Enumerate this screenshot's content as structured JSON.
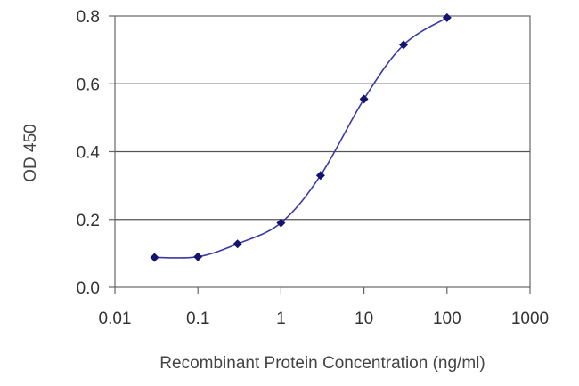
{
  "chart_data": {
    "type": "line",
    "title": "",
    "xlabel": "Recombinant Protein Concentration (ng/ml)",
    "ylabel": "OD 450",
    "xscale": "log",
    "xlim": [
      0.01,
      1000
    ],
    "ylim": [
      0,
      0.8
    ],
    "xticks": [
      "0.01",
      "0.1",
      "1",
      "10",
      "100",
      "1000"
    ],
    "yticks": [
      "0.0",
      "0.2",
      "0.4",
      "0.6",
      "0.8"
    ],
    "grid": "horizontal",
    "legend": "none",
    "series": [
      {
        "x": [
          0.03,
          0.1,
          0.3,
          1,
          3,
          10,
          30,
          100
        ],
        "y": [
          0.088,
          0.09,
          0.128,
          0.19,
          0.33,
          0.555,
          0.715,
          0.795
        ],
        "color": "#3a3aa8",
        "marker": "diamond",
        "marker_color": "#14146e"
      }
    ]
  }
}
